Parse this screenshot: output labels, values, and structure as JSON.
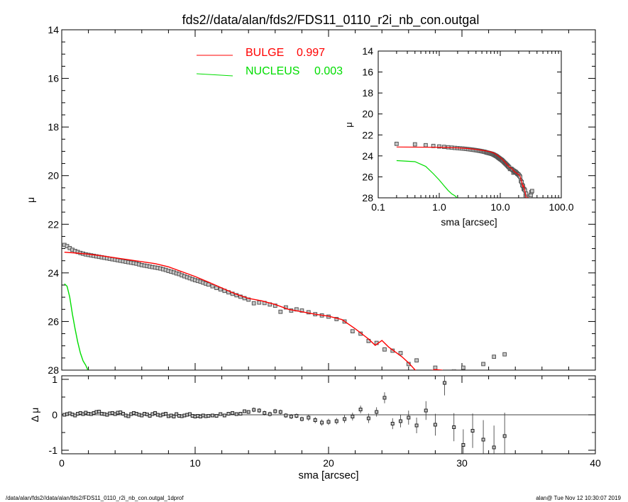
{
  "title": "fds2//data/alan/fds2/FDS11_0110_r2i_nb_con.outgal",
  "footer": {
    "left": "/data/alan/fds2//data/alan/fds2/FDS11_0110_r2i_nb_con.outgal_1dprof",
    "right": "alan@  Tue Nov 12 10:30:07 2019"
  },
  "colors": {
    "data": "#555555",
    "bulge": "#ff0000",
    "nucleus": "#00dd00",
    "axes": "#000000"
  },
  "legend": [
    {
      "name": "BULGE",
      "value": "0.997",
      "color": "#ff0000"
    },
    {
      "name": "NUCLEUS",
      "value": "0.003",
      "color": "#00dd00"
    }
  ],
  "chart_data": [
    {
      "id": "main",
      "type": "scatter",
      "xlabel": "",
      "ylabel": "μ",
      "xlim": [
        0,
        40
      ],
      "ylim": [
        28,
        14
      ],
      "xticks": [
        0,
        10,
        20,
        30,
        40
      ],
      "yticks": [
        14,
        16,
        18,
        20,
        22,
        24,
        26,
        28
      ],
      "yticklabels": [
        "14",
        "16",
        "18",
        "20",
        "22",
        "24",
        "26",
        "28"
      ],
      "legend_position": "top-left",
      "observed": {
        "x": [
          0.2,
          0.4,
          0.6,
          0.8,
          1.0,
          1.2,
          1.4,
          1.6,
          1.8,
          2.0,
          2.2,
          2.4,
          2.6,
          2.8,
          3.0,
          3.2,
          3.4,
          3.6,
          3.8,
          4.0,
          4.2,
          4.4,
          4.6,
          4.8,
          5.0,
          5.2,
          5.4,
          5.6,
          5.8,
          6.0,
          6.2,
          6.4,
          6.6,
          6.8,
          7.0,
          7.2,
          7.4,
          7.6,
          7.8,
          8.0,
          8.2,
          8.4,
          8.6,
          8.8,
          9.0,
          9.2,
          9.4,
          9.6,
          9.8,
          10.0,
          10.2,
          10.4,
          10.6,
          10.8,
          11.0,
          11.3,
          11.6,
          11.9,
          12.2,
          12.5,
          12.8,
          13.1,
          13.4,
          13.7,
          14.0,
          14.4,
          14.8,
          15.2,
          15.6,
          16.0,
          16.4,
          16.8,
          17.2,
          17.6,
          18.0,
          18.5,
          19.0,
          19.5,
          20.0,
          20.6,
          21.2,
          21.8,
          22.4,
          23.0,
          23.6,
          24.2,
          24.8,
          25.4,
          26.0,
          26.6,
          27.3,
          28.0,
          28.7,
          29.4,
          30.1,
          30.8,
          31.6,
          32.4,
          33.2
        ],
        "y": [
          22.85,
          22.9,
          22.98,
          23.05,
          23.1,
          23.14,
          23.18,
          23.21,
          23.24,
          23.26,
          23.28,
          23.3,
          23.32,
          23.34,
          23.36,
          23.38,
          23.4,
          23.42,
          23.44,
          23.46,
          23.48,
          23.5,
          23.52,
          23.54,
          23.56,
          23.58,
          23.6,
          23.62,
          23.65,
          23.68,
          23.7,
          23.72,
          23.74,
          23.76,
          23.78,
          23.8,
          23.82,
          23.85,
          23.88,
          23.92,
          23.95,
          23.98,
          24.02,
          24.05,
          24.1,
          24.14,
          24.18,
          24.22,
          24.26,
          24.3,
          24.33,
          24.36,
          24.4,
          24.44,
          24.48,
          24.55,
          24.62,
          24.68,
          24.74,
          24.8,
          24.86,
          24.92,
          24.98,
          25.04,
          25.1,
          25.25,
          25.22,
          25.24,
          25.3,
          25.35,
          25.6,
          25.42,
          25.55,
          25.5,
          25.55,
          25.62,
          25.7,
          25.75,
          25.8,
          25.9,
          26.0,
          26.4,
          26.5,
          26.8,
          26.88,
          27.15,
          27.2,
          27.3,
          27.75,
          27.6,
          28.1,
          27.9,
          28.2,
          28.05,
          27.9,
          28.1,
          27.75,
          27.45,
          27.35
        ],
        "err": [
          0.02,
          0.02,
          0.02,
          0.02,
          0.02,
          0.02,
          0.02,
          0.02,
          0.02,
          0.02,
          0.02,
          0.02,
          0.02,
          0.02,
          0.02,
          0.02,
          0.02,
          0.02,
          0.02,
          0.02,
          0.02,
          0.02,
          0.02,
          0.02,
          0.02,
          0.02,
          0.02,
          0.02,
          0.02,
          0.02,
          0.02,
          0.02,
          0.02,
          0.02,
          0.02,
          0.02,
          0.02,
          0.02,
          0.02,
          0.02,
          0.02,
          0.02,
          0.02,
          0.02,
          0.02,
          0.02,
          0.02,
          0.02,
          0.02,
          0.02,
          0.02,
          0.02,
          0.02,
          0.02,
          0.02,
          0.02,
          0.02,
          0.02,
          0.02,
          0.02,
          0.02,
          0.02,
          0.02,
          0.02,
          0.02,
          0.03,
          0.03,
          0.03,
          0.03,
          0.03,
          0.03,
          0.03,
          0.03,
          0.03,
          0.03,
          0.04,
          0.04,
          0.04,
          0.04,
          0.04,
          0.05,
          0.05,
          0.05,
          0.06,
          0.06,
          0.07,
          0.07,
          0.08,
          0.09,
          0.1,
          0.12,
          0.14,
          0.16,
          0.18,
          0.2,
          0.22,
          0.25,
          0.28,
          0.3
        ]
      },
      "bulge_model": {
        "x": [
          0.2,
          1.0,
          2.0,
          3.0,
          4.0,
          5.0,
          6.0,
          7.0,
          8.0,
          9.0,
          10.0,
          11.0,
          12.0,
          13.0,
          14.0,
          15.0,
          16.0,
          17.0,
          18.0,
          19.0,
          20.0,
          21.0,
          22.0,
          23.0,
          23.5,
          24.0,
          24.5,
          25.0,
          25.5,
          26.0,
          26.5,
          27.0,
          27.5,
          28.0,
          28.5,
          29.0
        ],
        "y": [
          23.15,
          23.18,
          23.23,
          23.3,
          23.38,
          23.46,
          23.54,
          23.62,
          23.75,
          23.95,
          24.15,
          24.38,
          24.62,
          24.86,
          25.05,
          25.15,
          25.3,
          25.5,
          25.6,
          25.7,
          25.78,
          25.92,
          26.3,
          26.72,
          26.98,
          26.78,
          27.05,
          27.25,
          27.45,
          27.7,
          28.0,
          28.15,
          28.05,
          27.98,
          28.0,
          28.15
        ]
      },
      "nucleus_model": {
        "x": [
          0.2,
          0.4,
          0.6,
          0.8,
          1.0,
          1.2,
          1.4,
          1.6,
          1.8,
          2.0
        ],
        "y": [
          24.45,
          24.55,
          25.0,
          25.7,
          26.3,
          26.85,
          27.3,
          27.62,
          27.8,
          28.05
        ]
      }
    },
    {
      "id": "residual",
      "type": "scatter",
      "xlabel": "sma [arcsec]",
      "ylabel": "Δ μ",
      "xlim": [
        0,
        40
      ],
      "ylim": [
        -1.1,
        1.1
      ],
      "xticks": [
        0,
        10,
        20,
        30,
        40
      ],
      "xticklabels": [
        "0",
        "10",
        "20",
        "30",
        "40"
      ],
      "yticks": [
        1,
        0,
        -1
      ],
      "yticklabels": [
        "1",
        "0",
        "-1"
      ],
      "zero_line": true,
      "points": {
        "x": [
          0.2,
          0.4,
          0.6,
          0.8,
          1.0,
          1.2,
          1.4,
          1.6,
          1.8,
          2.0,
          2.2,
          2.4,
          2.6,
          2.8,
          3.0,
          3.2,
          3.4,
          3.6,
          3.8,
          4.0,
          4.2,
          4.4,
          4.6,
          4.8,
          5.0,
          5.2,
          5.4,
          5.6,
          5.8,
          6.0,
          6.2,
          6.4,
          6.6,
          6.8,
          7.0,
          7.2,
          7.4,
          7.6,
          7.8,
          8.0,
          8.2,
          8.4,
          8.6,
          8.8,
          9.0,
          9.2,
          9.4,
          9.6,
          9.8,
          10.0,
          10.2,
          10.4,
          10.6,
          10.8,
          11.0,
          11.3,
          11.6,
          11.9,
          12.2,
          12.5,
          12.8,
          13.1,
          13.4,
          13.7,
          14.0,
          14.4,
          14.8,
          15.2,
          15.6,
          16.0,
          16.4,
          16.8,
          17.2,
          17.6,
          18.0,
          18.5,
          19.0,
          19.5,
          20.0,
          20.6,
          21.2,
          21.8,
          22.4,
          23.0,
          23.6,
          24.2,
          24.8,
          25.4,
          26.0,
          26.6,
          27.3,
          28.0,
          28.7,
          29.4,
          30.1,
          30.8,
          31.6,
          32.4,
          33.2
        ],
        "y": [
          0.0,
          0.02,
          0.04,
          0.01,
          -0.02,
          0.03,
          0.05,
          0.02,
          0.06,
          0.03,
          0.02,
          0.05,
          0.08,
          0.09,
          0.03,
          0.02,
          0.0,
          0.04,
          0.05,
          0.02,
          0.06,
          0.07,
          0.03,
          -0.02,
          -0.04,
          0.02,
          0.05,
          0.03,
          0.0,
          -0.02,
          0.03,
          0.01,
          -0.03,
          0.02,
          0.05,
          0.0,
          -0.02,
          0.01,
          0.03,
          -0.04,
          -0.02,
          -0.05,
          0.02,
          -0.03,
          -0.04,
          -0.02,
          0.0,
          0.02,
          -0.03,
          -0.05,
          -0.03,
          -0.05,
          -0.02,
          -0.04,
          -0.03,
          -0.02,
          -0.03,
          0.02,
          -0.02,
          0.03,
          0.05,
          0.02,
          0.03,
          0.1,
          0.08,
          0.14,
          0.12,
          0.05,
          0.02,
          0.1,
          0.08,
          -0.02,
          -0.05,
          -0.03,
          -0.12,
          -0.08,
          -0.15,
          -0.22,
          -0.2,
          -0.18,
          -0.12,
          -0.05,
          0.15,
          -0.1,
          0.08,
          0.48,
          -0.25,
          -0.18,
          -0.08,
          -0.3,
          0.12,
          -0.28,
          0.9,
          -0.35,
          -0.85,
          -0.45,
          -0.7,
          -0.92,
          -0.6
        ],
        "err": [
          0.02,
          0.02,
          0.02,
          0.02,
          0.02,
          0.02,
          0.02,
          0.02,
          0.02,
          0.02,
          0.02,
          0.02,
          0.02,
          0.02,
          0.02,
          0.02,
          0.02,
          0.02,
          0.02,
          0.02,
          0.02,
          0.02,
          0.02,
          0.02,
          0.02,
          0.02,
          0.02,
          0.02,
          0.02,
          0.02,
          0.02,
          0.02,
          0.02,
          0.02,
          0.02,
          0.02,
          0.02,
          0.02,
          0.02,
          0.02,
          0.02,
          0.02,
          0.02,
          0.02,
          0.02,
          0.02,
          0.02,
          0.02,
          0.02,
          0.02,
          0.02,
          0.02,
          0.02,
          0.02,
          0.02,
          0.02,
          0.02,
          0.02,
          0.02,
          0.02,
          0.02,
          0.02,
          0.02,
          0.02,
          0.02,
          0.03,
          0.03,
          0.03,
          0.03,
          0.03,
          0.03,
          0.03,
          0.03,
          0.03,
          0.03,
          0.04,
          0.04,
          0.04,
          0.04,
          0.04,
          0.05,
          0.05,
          0.05,
          0.06,
          0.06,
          0.07,
          0.07,
          0.08,
          0.09,
          0.1,
          0.12,
          0.14,
          0.16,
          0.18,
          0.2,
          0.22,
          0.25,
          0.28,
          0.3
        ]
      }
    },
    {
      "id": "inset",
      "type": "scatter",
      "xscale": "log",
      "xlabel": "sma [arcsec]",
      "ylabel": "μ",
      "xlim": [
        0.1,
        100
      ],
      "ylim": [
        28,
        14
      ],
      "xticks": [
        0.1,
        1,
        10,
        100
      ],
      "xticklabels": [
        "0.1",
        "1.0",
        "10.0",
        "100.0"
      ],
      "yticks": [
        14,
        16,
        18,
        20,
        22,
        24,
        26,
        28
      ],
      "yticklabels": [
        "14",
        "16",
        "18",
        "20",
        "22",
        "24",
        "26",
        "28"
      ]
    }
  ]
}
